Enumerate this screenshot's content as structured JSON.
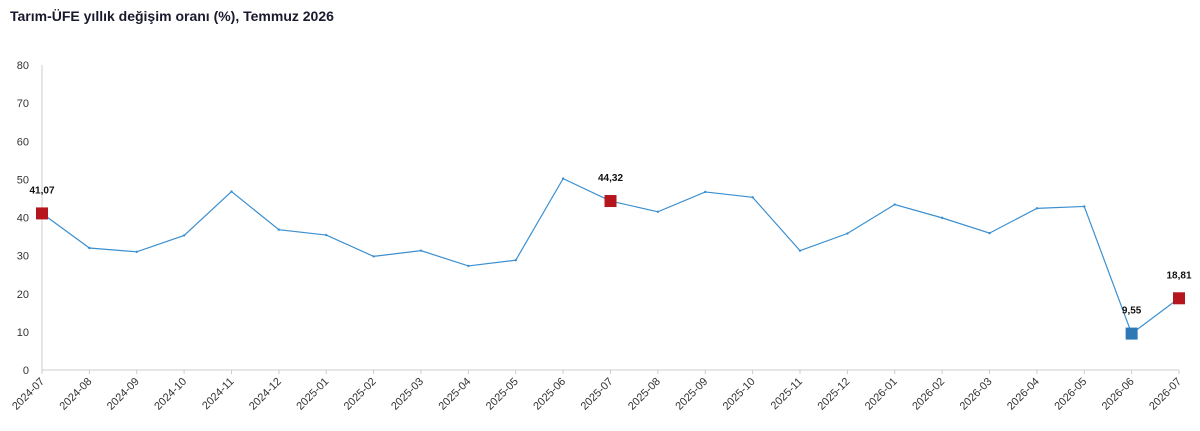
{
  "title": "Tarım-ÜFE yıllık değişim oranı (%), Temmuz 2026",
  "colors": {
    "line": "#3b8fd0",
    "highlight": "#b5161e",
    "low": "#2e78b6",
    "axis": "#cccccc"
  },
  "chart_data": {
    "type": "line",
    "title": "Tarım-ÜFE yıllık değişim oranı (%), Temmuz 2026",
    "xlabel": "",
    "ylabel": "",
    "ylim": [
      0,
      80
    ],
    "yticks": [
      "0",
      "10",
      "20",
      "30",
      "40",
      "50",
      "60",
      "70",
      "80"
    ],
    "grid": false,
    "categories": [
      "2024-07",
      "2024-08",
      "2024-09",
      "2024-10",
      "2024-11",
      "2024-12",
      "2025-01",
      "2025-02",
      "2025-03",
      "2025-04",
      "2025-05",
      "2025-06",
      "2025-07",
      "2025-08",
      "2025-09",
      "2025-10",
      "2025-11",
      "2025-12",
      "2026-01",
      "2026-02",
      "2026-03",
      "2026-04",
      "2026-05",
      "2026-06",
      "2026-07"
    ],
    "series": [
      {
        "values": [
          41.07,
          32.0,
          31.0,
          35.3,
          46.8,
          36.8,
          35.4,
          29.8,
          31.3,
          27.3,
          28.8,
          50.2,
          44.32,
          41.5,
          46.7,
          45.3,
          31.3,
          35.8,
          43.4,
          39.9,
          35.9,
          42.4,
          42.9,
          9.55,
          18.81
        ]
      }
    ],
    "markers": [
      {
        "index": 0,
        "label": "41,07",
        "color": "#b5161e"
      },
      {
        "index": 12,
        "label": "44,32",
        "color": "#b5161e"
      },
      {
        "index": 23,
        "label": "9,55",
        "color": "#2e78b6"
      },
      {
        "index": 24,
        "label": "18,81",
        "color": "#b5161e"
      }
    ]
  }
}
